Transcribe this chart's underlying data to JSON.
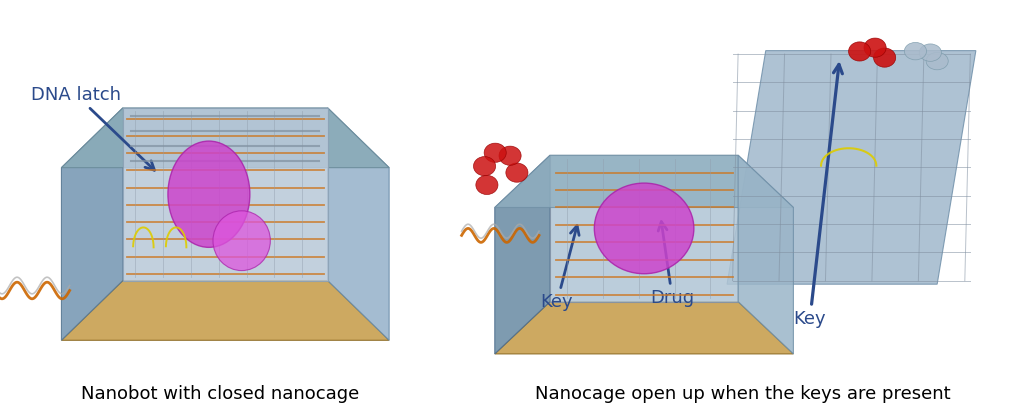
{
  "figure_width": 10.24,
  "figure_height": 4.15,
  "background_color": "#ffffff",
  "left_caption": "Nanobot with closed nanocage",
  "right_caption": "Nanocage open up when the keys are present",
  "caption_fontsize": 13,
  "caption_color": "#000000",
  "annotation_color": "#2b4a8b",
  "annotation_fontsize": 13,
  "arrow_lw": 2.0,
  "arrow_mutation_scale": 16
}
